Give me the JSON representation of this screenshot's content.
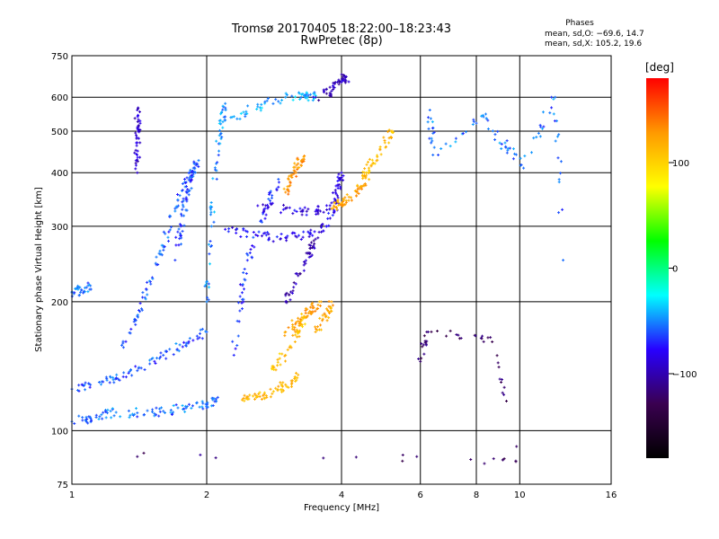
{
  "header": {
    "title": "Tromsø 20170405 18:22:00–18:23:43",
    "subtitle": "RwPretec (8p)"
  },
  "phases": {
    "title": "Phases",
    "line_o": "mean, sd,O: −69.6, 14.7",
    "line_x": "mean, sd,X: 105.2, 19.6"
  },
  "colorbar": {
    "unit": "[deg]",
    "ticks": [
      "100",
      "0",
      "−100"
    ],
    "tick_values": [
      100,
      0,
      -100
    ],
    "range": [
      -180,
      180
    ],
    "colors": [
      "#000000",
      "#3a0050",
      "#2800ff",
      "#00ffff",
      "#00ff00",
      "#ffff00",
      "#ff9900",
      "#ff0000"
    ]
  },
  "chart_data": {
    "type": "scatter",
    "xlabel": "Frequency [MHz]",
    "ylabel": "Stationary phase Virtual Height [km]",
    "xscale": "log",
    "yscale": "log",
    "xlim": [
      1,
      16
    ],
    "ylim": [
      75,
      750
    ],
    "xticks": [
      1,
      2,
      4,
      6,
      8,
      10,
      16
    ],
    "xtick_labels": [
      "1",
      "2",
      "4",
      "6",
      "8",
      "10",
      "16"
    ],
    "yticks": [
      75,
      100,
      200,
      300,
      400,
      500,
      600,
      750
    ],
    "ytick_labels": [
      "75",
      "100",
      "200",
      "300",
      "400",
      "500",
      "600",
      "750"
    ],
    "grid": true,
    "series": [
      {
        "x": [
          1.0,
          1.1,
          1.2,
          1.4,
          1.6,
          1.8,
          2.0,
          2.1
        ],
        "y": [
          105,
          107,
          110,
          110,
          111,
          113,
          115,
          117
        ],
        "phase": -55
      },
      {
        "x": [
          1.0,
          1.1,
          1.25,
          1.4,
          1.6,
          1.8,
          2.0
        ],
        "y": [
          125,
          128,
          132,
          138,
          150,
          160,
          170
        ],
        "phase": -60
      },
      {
        "x": [
          1.0,
          1.05,
          1.1
        ],
        "y": [
          210,
          213,
          218
        ],
        "phase": -55
      },
      {
        "x": [
          1.3,
          1.4,
          1.5,
          1.6,
          1.7,
          1.8,
          1.9
        ],
        "y": [
          160,
          185,
          220,
          270,
          330,
          380,
          420
        ],
        "phase": -60
      },
      {
        "x": [
          1.7,
          1.75,
          1.8,
          1.85,
          1.9
        ],
        "y": [
          250,
          300,
          350,
          390,
          420
        ],
        "phase": -65
      },
      {
        "x": [
          2.0,
          2.05,
          2.1,
          2.15,
          2.2
        ],
        "y": [
          200,
          300,
          420,
          520,
          580
        ],
        "phase": -50
      },
      {
        "x": [
          2.3,
          2.4,
          2.5,
          2.7,
          2.9
        ],
        "y": [
          150,
          210,
          260,
          330,
          380
        ],
        "phase": -70
      },
      {
        "x": [
          2.2,
          2.6,
          3.0,
          3.4,
          3.7,
          3.9,
          4.0
        ],
        "y": [
          295,
          285,
          282,
          288,
          300,
          340,
          400
        ],
        "phase": -80
      },
      {
        "x": [
          2.2,
          2.6,
          3.0,
          3.3,
          3.5
        ],
        "y": [
          530,
          570,
          600,
          605,
          600
        ],
        "phase": -45
      },
      {
        "x": [
          2.6,
          3.0,
          3.5,
          3.8,
          4.0
        ],
        "y": [
          335,
          330,
          325,
          340,
          390
        ],
        "phase": -85
      },
      {
        "x": [
          3.5,
          3.8,
          4.0,
          4.1
        ],
        "y": [
          600,
          620,
          650,
          670
        ],
        "phase": -95
      },
      {
        "x": [
          3.0,
          3.2,
          3.4,
          3.5
        ],
        "y": [
          200,
          230,
          260,
          280
        ],
        "phase": -100
      },
      {
        "x": [
          2.4,
          2.6,
          2.8,
          3.0,
          3.2
        ],
        "y": [
          118,
          120,
          122,
          128,
          135
        ],
        "phase": 115
      },
      {
        "x": [
          2.8,
          3.0,
          3.2,
          3.3
        ],
        "y": [
          140,
          150,
          170,
          185
        ],
        "phase": 110
      },
      {
        "x": [
          3.0,
          3.2,
          3.4,
          3.6
        ],
        "y": [
          170,
          180,
          190,
          200
        ],
        "phase": 125
      },
      {
        "x": [
          3.5,
          3.7,
          3.8
        ],
        "y": [
          170,
          185,
          200
        ],
        "phase": 120
      },
      {
        "x": [
          3.0,
          3.1,
          3.2,
          3.3
        ],
        "y": [
          360,
          390,
          420,
          430
        ],
        "phase": 130
      },
      {
        "x": [
          3.8,
          4.0,
          4.2,
          4.4,
          4.6
        ],
        "y": [
          330,
          340,
          350,
          370,
          400
        ],
        "phase": 120
      },
      {
        "x": [
          4.5,
          4.7,
          5.0,
          5.2
        ],
        "y": [
          400,
          420,
          470,
          500
        ],
        "phase": 110
      },
      {
        "x": [
          1.4,
          1.4,
          1.4,
          1.4
        ],
        "y": [
          560,
          510,
          470,
          400
        ],
        "phase": -90
      },
      {
        "x": [
          6.3,
          6.4,
          8.3,
          9.3,
          10.2,
          12.0,
          12.5
        ],
        "y": [
          560,
          440,
          540,
          460,
          410,
          600,
          250
        ],
        "phase": -55
      },
      {
        "x": [
          6.0,
          6.2,
          8.6,
          9.8,
          1.4
        ],
        "y": [
          145,
          170,
          165,
          85,
          87
        ],
        "phase": -120
      }
    ]
  }
}
